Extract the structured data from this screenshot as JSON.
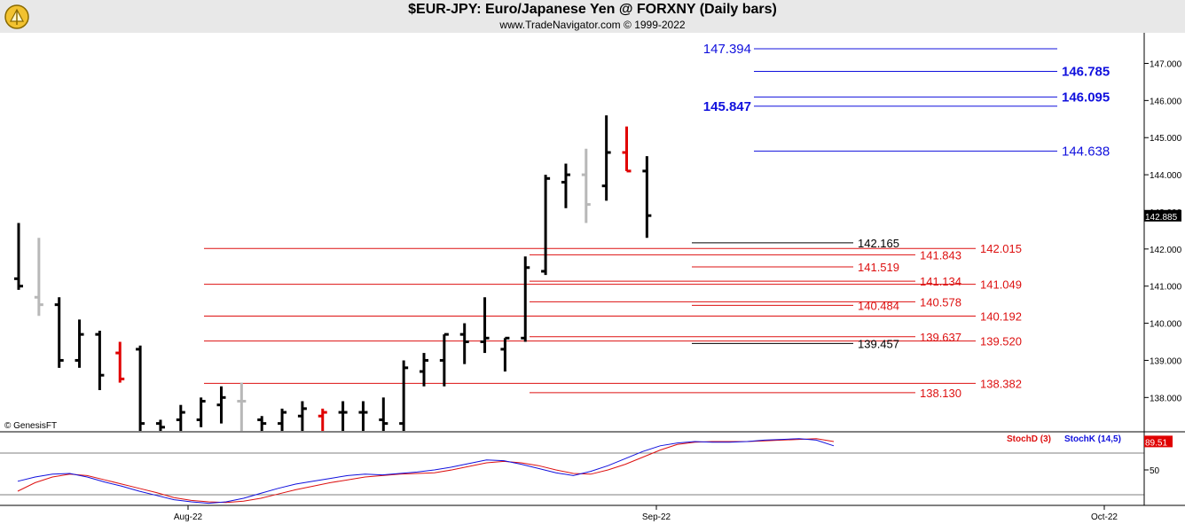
{
  "header": {
    "title": "$EUR-JPY:  Euro/Japanese Yen @ FORXNY  (Daily bars)",
    "subtitle": "www.TradeNavigator.com © 1999-2022"
  },
  "copyright": "© GenesisFT",
  "colors": {
    "bar_up": "#000000",
    "bar_gray": "#b8b8b8",
    "bar_red": "#e00000",
    "bar_green": "#00c000",
    "fib_blue": "#1010dd",
    "fib_red": "#dd1010",
    "stoch_d": "#dd1010",
    "stoch_k": "#1010dd"
  },
  "chart_data": [
    {
      "type": "ohlc",
      "ylim": [
        137.1,
        147.8
      ],
      "y_ticks": [
        "147.000",
        "146.000",
        "145.000",
        "144.000",
        "143.000",
        "142.000",
        "141.000",
        "140.000",
        "139.000",
        "138.000"
      ],
      "x_ticks": [
        "Aug-22",
        "Sep-22",
        "Oct-22"
      ],
      "last_price": "142.885",
      "bars": [
        {
          "h": 142.7,
          "l": 140.9,
          "o": 141.2,
          "c": 141.0,
          "color": "black"
        },
        {
          "h": 142.3,
          "l": 140.2,
          "o": 140.7,
          "c": 140.5,
          "color": "gray"
        },
        {
          "h": 140.7,
          "l": 138.8,
          "o": 140.5,
          "c": 139.0,
          "color": "black"
        },
        {
          "h": 140.1,
          "l": 138.8,
          "o": 139.0,
          "c": 139.7,
          "color": "black"
        },
        {
          "h": 139.8,
          "l": 138.2,
          "o": 139.7,
          "c": 138.6,
          "color": "black"
        },
        {
          "h": 139.5,
          "l": 138.4,
          "o": 139.2,
          "c": 138.5,
          "color": "red"
        },
        {
          "h": 139.4,
          "l": 137.1,
          "o": 139.3,
          "c": 137.3,
          "color": "black"
        },
        {
          "h": 137.4,
          "l": 137.1,
          "o": 137.3,
          "c": 137.2,
          "color": "black"
        },
        {
          "h": 137.8,
          "l": 137.1,
          "o": 137.4,
          "c": 137.6,
          "color": "black"
        },
        {
          "h": 138.0,
          "l": 137.2,
          "o": 137.4,
          "c": 137.9,
          "color": "black"
        },
        {
          "h": 138.3,
          "l": 137.3,
          "o": 137.8,
          "c": 138.0,
          "color": "black"
        },
        {
          "h": 138.4,
          "l": 137.1,
          "o": 137.9,
          "c": 137.9,
          "color": "gray"
        },
        {
          "h": 137.5,
          "l": 137.1,
          "o": 137.4,
          "c": 137.3,
          "color": "black"
        },
        {
          "h": 137.7,
          "l": 137.1,
          "o": 137.3,
          "c": 137.6,
          "color": "black"
        },
        {
          "h": 137.9,
          "l": 137.1,
          "o": 137.5,
          "c": 137.7,
          "color": "black"
        },
        {
          "h": 137.7,
          "l": 137.1,
          "o": 137.5,
          "c": 137.6,
          "color": "red"
        },
        {
          "h": 137.9,
          "l": 137.1,
          "o": 137.6,
          "c": 137.6,
          "color": "black"
        },
        {
          "h": 137.9,
          "l": 137.1,
          "o": 137.6,
          "c": 137.6,
          "color": "black"
        },
        {
          "h": 138.0,
          "l": 137.1,
          "o": 137.4,
          "c": 137.3,
          "color": "black"
        },
        {
          "h": 139.0,
          "l": 137.1,
          "o": 137.3,
          "c": 138.8,
          "color": "black"
        },
        {
          "h": 139.2,
          "l": 138.3,
          "o": 138.7,
          "c": 139.0,
          "color": "black"
        },
        {
          "h": 139.7,
          "l": 138.3,
          "o": 139.0,
          "c": 139.7,
          "color": "black"
        },
        {
          "h": 140.0,
          "l": 138.9,
          "o": 139.7,
          "c": 139.5,
          "color": "black"
        },
        {
          "h": 140.7,
          "l": 139.2,
          "o": 139.5,
          "c": 139.6,
          "color": "black"
        },
        {
          "h": 139.6,
          "l": 138.7,
          "o": 139.3,
          "c": 139.6,
          "color": "black"
        },
        {
          "h": 141.8,
          "l": 139.5,
          "o": 139.6,
          "c": 141.5,
          "color": "black"
        },
        {
          "h": 144.0,
          "l": 141.3,
          "o": 141.4,
          "c": 143.9,
          "color": "black"
        },
        {
          "h": 144.3,
          "l": 143.1,
          "o": 143.8,
          "c": 144.0,
          "color": "black"
        },
        {
          "h": 144.7,
          "l": 142.7,
          "o": 144.0,
          "c": 143.2,
          "color": "gray"
        },
        {
          "h": 145.6,
          "l": 143.3,
          "o": 143.7,
          "c": 144.6,
          "color": "black"
        },
        {
          "h": 145.3,
          "l": 144.1,
          "o": 144.6,
          "c": 144.1,
          "color": "red"
        },
        {
          "h": 144.5,
          "l": 142.3,
          "o": 144.1,
          "c": 142.9,
          "color": "black"
        }
      ],
      "levels": [
        {
          "value": "147.394",
          "color": "blue",
          "bold": false
        },
        {
          "value": "146.785",
          "color": "blue",
          "bold": true
        },
        {
          "value": "146.095",
          "color": "blue",
          "bold": true
        },
        {
          "value": "145.847",
          "color": "blue",
          "bold": true
        },
        {
          "value": "144.638",
          "color": "blue",
          "bold": false
        },
        {
          "value": "142.165",
          "color": "black",
          "bold": false
        },
        {
          "value": "142.015",
          "color": "red",
          "bold": false
        },
        {
          "value": "141.843",
          "color": "red",
          "bold": false
        },
        {
          "value": "141.519",
          "color": "red",
          "bold": false
        },
        {
          "value": "141.134",
          "color": "red",
          "bold": false
        },
        {
          "value": "141.049",
          "color": "red",
          "bold": false
        },
        {
          "value": "140.578",
          "color": "red",
          "bold": false
        },
        {
          "value": "140.484",
          "color": "red",
          "bold": false
        },
        {
          "value": "140.192",
          "color": "red",
          "bold": false
        },
        {
          "value": "139.637",
          "color": "red",
          "bold": false
        },
        {
          "value": "139.520",
          "color": "red",
          "bold": false
        },
        {
          "value": "139.457",
          "color": "black",
          "bold": false
        },
        {
          "value": "138.382",
          "color": "red",
          "bold": false
        },
        {
          "value": "138.130",
          "color": "red",
          "bold": false
        }
      ]
    },
    {
      "type": "line",
      "legend": [
        "StochD (3)",
        "StochK (14,5)"
      ],
      "last_value": "89.51",
      "y_ticks": [
        "50"
      ],
      "ylim": [
        0,
        100
      ],
      "series": [
        {
          "name": "StochD (3)",
          "values": [
            20,
            32,
            40,
            44,
            42,
            36,
            30,
            24,
            18,
            11,
            7,
            5,
            4,
            6,
            10,
            16,
            22,
            27,
            32,
            36,
            40,
            42,
            44,
            45,
            46,
            50,
            55,
            60,
            62,
            60,
            56,
            50,
            45,
            44,
            50,
            58,
            68,
            78,
            86,
            89,
            90,
            90,
            90,
            91,
            92,
            93,
            94,
            90
          ]
        },
        {
          "name": "StochK (14,5)",
          "values": [
            34,
            40,
            44,
            45,
            40,
            33,
            27,
            20,
            14,
            8,
            5,
            3,
            5,
            10,
            17,
            24,
            30,
            34,
            38,
            42,
            44,
            43,
            45,
            47,
            50,
            54,
            59,
            64,
            63,
            58,
            52,
            46,
            42,
            48,
            56,
            66,
            76,
            84,
            88,
            90,
            89,
            89,
            90,
            92,
            93,
            94,
            92,
            84
          ]
        }
      ]
    }
  ]
}
